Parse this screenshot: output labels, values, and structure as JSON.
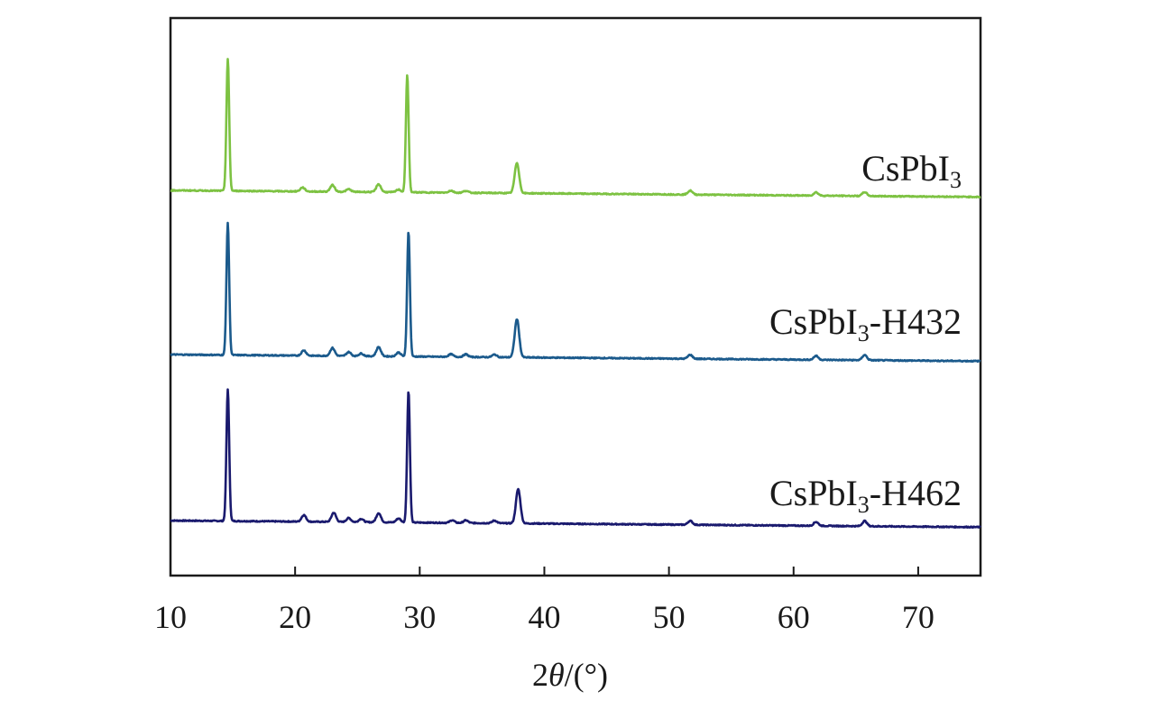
{
  "chart_data": {
    "type": "line",
    "xlabel": {
      "prefix": "2",
      "symbol": "θ",
      "suffix": "/(°)"
    },
    "xlim": [
      10,
      75
    ],
    "xticks": [
      10,
      20,
      30,
      40,
      50,
      60,
      70
    ],
    "yticks_visible": false,
    "grid": false,
    "legend": "inline labels at right of each trace",
    "series": [
      {
        "name": "CsPbI3-H462",
        "label": {
          "main": "CsPbI",
          "sub": "3",
          "suffix": "-H462"
        },
        "color": "#1a1a6e",
        "baseline_start": 0.0,
        "baseline_end": -0.05,
        "peaks": [
          {
            "x": 14.6,
            "height": 1.0
          },
          {
            "x": 20.7,
            "height": 0.05
          },
          {
            "x": 23.1,
            "height": 0.07
          },
          {
            "x": 24.3,
            "height": 0.03
          },
          {
            "x": 25.3,
            "height": 0.025
          },
          {
            "x": 26.7,
            "height": 0.07
          },
          {
            "x": 28.3,
            "height": 0.03
          },
          {
            "x": 29.1,
            "height": 1.0
          },
          {
            "x": 32.6,
            "height": 0.02
          },
          {
            "x": 33.7,
            "height": 0.02
          },
          {
            "x": 36.0,
            "height": 0.02
          },
          {
            "x": 37.9,
            "height": 0.26
          },
          {
            "x": 51.7,
            "height": 0.03
          },
          {
            "x": 61.8,
            "height": 0.03
          },
          {
            "x": 65.7,
            "height": 0.04
          }
        ]
      },
      {
        "name": "CsPbI3-H432",
        "label": {
          "main": "CsPbI",
          "sub": "3",
          "suffix": "-H432"
        },
        "color": "#1b5a8c",
        "baseline_start": 0.0,
        "baseline_end": -0.05,
        "peaks": [
          {
            "x": 14.6,
            "height": 1.0
          },
          {
            "x": 20.7,
            "height": 0.04
          },
          {
            "x": 23.0,
            "height": 0.06
          },
          {
            "x": 24.3,
            "height": 0.03
          },
          {
            "x": 25.3,
            "height": 0.02
          },
          {
            "x": 26.7,
            "height": 0.07
          },
          {
            "x": 28.3,
            "height": 0.03
          },
          {
            "x": 29.1,
            "height": 0.95
          },
          {
            "x": 32.5,
            "height": 0.02
          },
          {
            "x": 33.7,
            "height": 0.02
          },
          {
            "x": 36.0,
            "height": 0.02
          },
          {
            "x": 37.8,
            "height": 0.29
          },
          {
            "x": 51.7,
            "height": 0.03
          },
          {
            "x": 61.8,
            "height": 0.03
          },
          {
            "x": 65.7,
            "height": 0.04
          }
        ]
      },
      {
        "name": "CsPbI3",
        "label": {
          "main": "CsPbI",
          "sub": "3",
          "suffix": ""
        },
        "color": "#7dc242",
        "baseline_start": 0.0,
        "baseline_end": -0.05,
        "peaks": [
          {
            "x": 14.6,
            "height": 1.0
          },
          {
            "x": 20.6,
            "height": 0.03
          },
          {
            "x": 23.0,
            "height": 0.05
          },
          {
            "x": 24.3,
            "height": 0.02
          },
          {
            "x": 26.7,
            "height": 0.06
          },
          {
            "x": 28.3,
            "height": 0.02
          },
          {
            "x": 29.0,
            "height": 0.89
          },
          {
            "x": 32.5,
            "height": 0.015
          },
          {
            "x": 33.7,
            "height": 0.015
          },
          {
            "x": 37.8,
            "height": 0.23
          },
          {
            "x": 51.7,
            "height": 0.03
          },
          {
            "x": 61.8,
            "height": 0.025
          },
          {
            "x": 65.7,
            "height": 0.03
          }
        ]
      }
    ]
  }
}
